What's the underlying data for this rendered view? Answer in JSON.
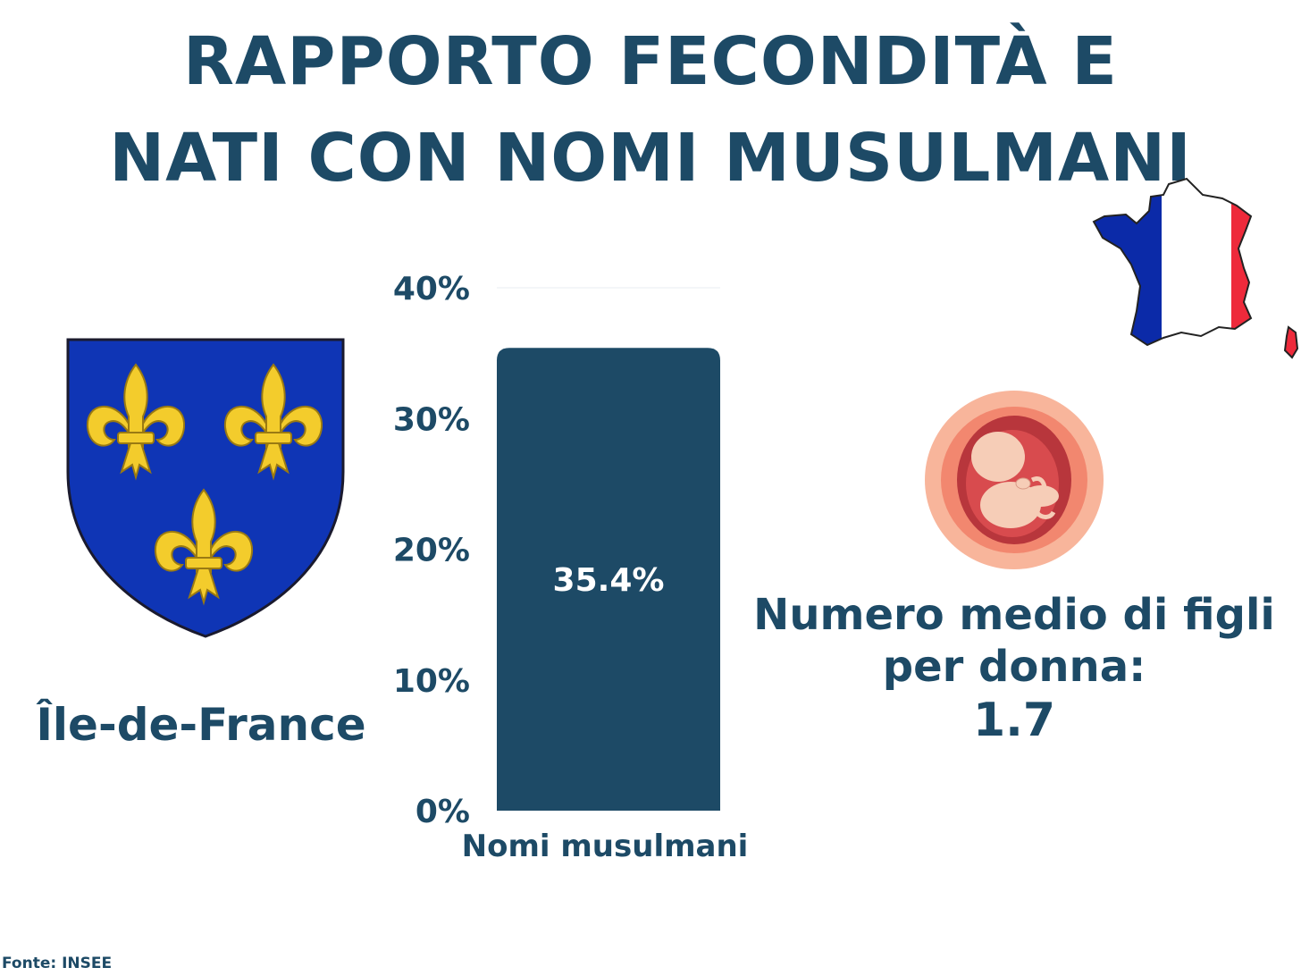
{
  "header": {
    "line1": "RAPPORTO FECONDITÀ E",
    "line2": "NATI CON NOMI MUSULMANI"
  },
  "colors": {
    "primary": "#1d4a66",
    "shield_blue": "#0f35b5",
    "lily_gold": "#f3cc2c",
    "flag_blue": "#0b2aa8",
    "flag_red": "#ee2a3b"
  },
  "region": {
    "name": "Île-de-France",
    "emblem": "fleur-de-lis-shield-icon"
  },
  "chart_data": {
    "type": "bar",
    "categories": [
      "Nomi musulmani"
    ],
    "values": [
      35.4
    ],
    "value_labels": [
      "35.4%"
    ],
    "ylim": [
      0,
      40
    ],
    "yticks": [
      "0%",
      "10%",
      "20%",
      "30%",
      "40%"
    ],
    "grid": false
  },
  "fertility": {
    "label_line1": "Numero medio di figli",
    "label_line2": "per donna:",
    "value": "1.7",
    "icon": "fetus-icon"
  },
  "map": {
    "icon": "france-flag-map-icon"
  },
  "footer": {
    "source": "Fonte: INSEE"
  }
}
